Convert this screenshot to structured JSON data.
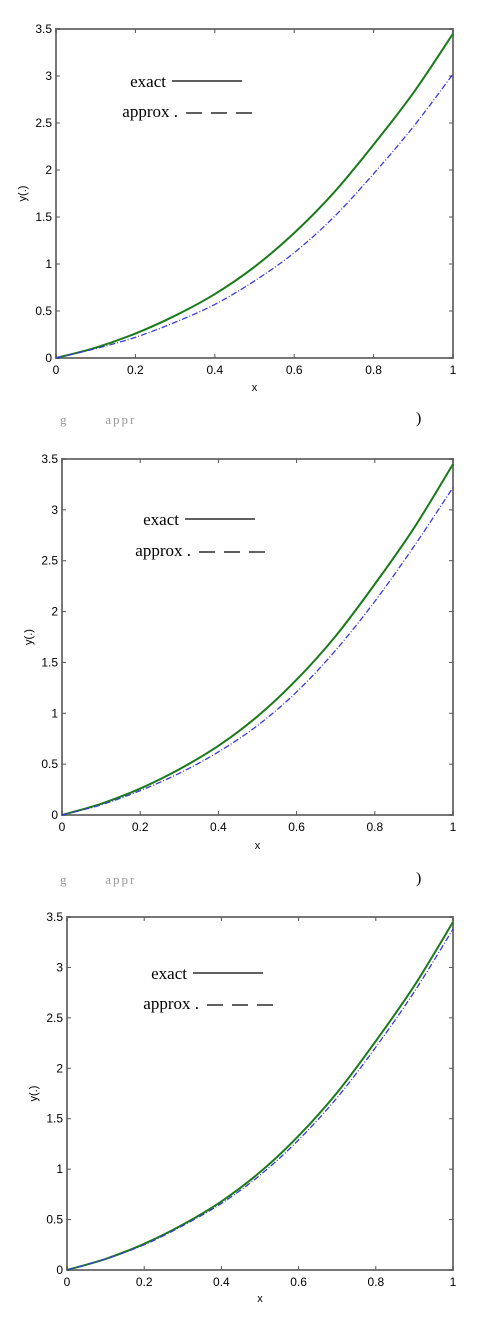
{
  "chart_data": [
    {
      "type": "line",
      "xlabel": "x",
      "ylabel": "y(.)",
      "xlim": [
        0,
        1
      ],
      "ylim": [
        0,
        3.5
      ],
      "xticks": [
        "0",
        "0.2",
        "0.4",
        "0.6",
        "0.8",
        "1"
      ],
      "yticks": [
        "0",
        "0.5",
        "1",
        "1.5",
        "2",
        "2.5",
        "3",
        "3.5"
      ],
      "legend_position": "top-left",
      "grid": false,
      "legend": [
        {
          "label": "exact",
          "style": "solid"
        },
        {
          "label": "approx .",
          "style": "dashed"
        }
      ],
      "x": [
        0,
        0.1,
        0.2,
        0.3,
        0.4,
        0.5,
        0.6,
        0.7,
        0.8,
        0.9,
        1.0
      ],
      "series": [
        {
          "key": "exact",
          "color": "#1a7a1a",
          "style": "solid",
          "values": [
            0,
            0.11,
            0.26,
            0.45,
            0.68,
            0.97,
            1.33,
            1.76,
            2.27,
            2.82,
            3.45
          ]
        },
        {
          "key": "approx",
          "color": "#3a3ad8",
          "style": "dashdot",
          "values": [
            0,
            0.1,
            0.22,
            0.38,
            0.57,
            0.82,
            1.12,
            1.5,
            1.96,
            2.46,
            3.02
          ]
        }
      ]
    },
    {
      "type": "line",
      "xlabel": "x",
      "ylabel": "y(.)",
      "xlim": [
        0,
        1
      ],
      "ylim": [
        0,
        3.5
      ],
      "xticks": [
        "0",
        "0.2",
        "0.4",
        "0.6",
        "0.8",
        "1"
      ],
      "yticks": [
        "0",
        "0.5",
        "1",
        "1.5",
        "2",
        "2.5",
        "3",
        "3.5"
      ],
      "legend_position": "top-left",
      "grid": false,
      "legend": [
        {
          "label": "exact",
          "style": "solid"
        },
        {
          "label": "approx .",
          "style": "dashed"
        }
      ],
      "x": [
        0,
        0.1,
        0.2,
        0.3,
        0.4,
        0.5,
        0.6,
        0.7,
        0.8,
        0.9,
        1.0
      ],
      "series": [
        {
          "key": "exact",
          "color": "#1a7a1a",
          "style": "solid",
          "values": [
            0,
            0.11,
            0.26,
            0.45,
            0.68,
            0.97,
            1.33,
            1.76,
            2.27,
            2.82,
            3.45
          ]
        },
        {
          "key": "approx",
          "color": "#3a3ad8",
          "style": "dashdot",
          "values": [
            0,
            0.1,
            0.24,
            0.41,
            0.62,
            0.88,
            1.21,
            1.62,
            2.1,
            2.64,
            3.22
          ]
        }
      ]
    },
    {
      "type": "line",
      "xlabel": "x",
      "ylabel": "y(.)",
      "xlim": [
        0,
        1
      ],
      "ylim": [
        0,
        3.5
      ],
      "xticks": [
        "0",
        "0.2",
        "0.4",
        "0.6",
        "0.8",
        "1"
      ],
      "yticks": [
        "0",
        "0.5",
        "1",
        "1.5",
        "2",
        "2.5",
        "3",
        "3.5"
      ],
      "legend_position": "top-left",
      "grid": false,
      "legend": [
        {
          "label": "exact",
          "style": "solid"
        },
        {
          "label": "approx .",
          "style": "dashed"
        }
      ],
      "x": [
        0,
        0.1,
        0.2,
        0.3,
        0.4,
        0.5,
        0.6,
        0.7,
        0.8,
        0.9,
        1.0
      ],
      "series": [
        {
          "key": "exact",
          "color": "#1a7a1a",
          "style": "solid",
          "values": [
            0,
            0.11,
            0.26,
            0.45,
            0.68,
            0.97,
            1.33,
            1.76,
            2.27,
            2.82,
            3.45
          ]
        },
        {
          "key": "approx",
          "color": "#3a3ad8",
          "style": "dashdot",
          "values": [
            0,
            0.11,
            0.25,
            0.44,
            0.66,
            0.94,
            1.29,
            1.71,
            2.21,
            2.76,
            3.38
          ]
        }
      ]
    }
  ],
  "captions": [
    {
      "paren": ")"
    },
    {
      "paren": ")"
    }
  ]
}
